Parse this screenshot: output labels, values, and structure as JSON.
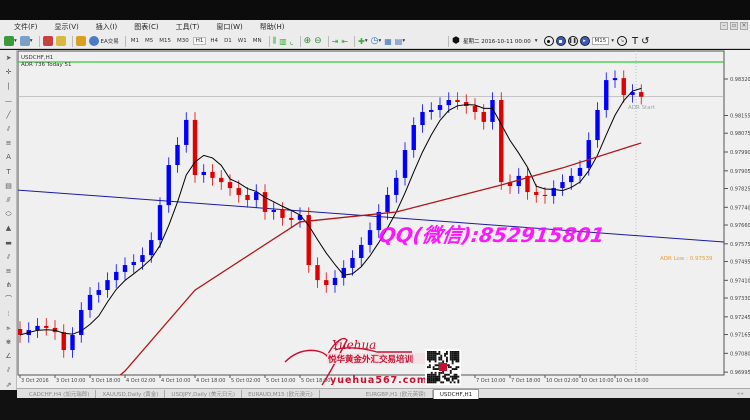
{
  "menu": [
    "文件(F)",
    "显示(V)",
    "插入(I)",
    "图表(C)",
    "工具(T)",
    "窗口(W)",
    "帮助(H)"
  ],
  "toolbar": {
    "ea_label": "EA交易",
    "timeframes": [
      "M1",
      "M5",
      "M15",
      "M30",
      "H1",
      "H4",
      "D1",
      "W1",
      "MN"
    ],
    "active_timeframe": "H1",
    "replay_date": "星期二 2016-10-11 00:00",
    "replay_period": "M15",
    "text_tool": "T"
  },
  "chart": {
    "symbol_title": "USDCHF,H1",
    "adr_info": "ADR 736  Today 51",
    "adr_start_label": "ADR Start",
    "adr_low_label": "ADR Low : 0.97539",
    "current_price": "0.98240",
    "adr_high_price": 0.98397,
    "watermark": "QQ(微信):852915801",
    "logo_signature": "Yuehua",
    "logo_cn": "悦华黄金外汇交易培训",
    "logo_url": "yuehua567.com",
    "colors": {
      "bull": "#0000ff",
      "bear": "#e00000",
      "ma_fast": "#000000",
      "ma_slow": "#b01818",
      "trendline": "#1a1aa0",
      "adr_high": "#33cc33",
      "adr_low": "#e0a040",
      "watermark": "#ff00ff"
    }
  },
  "chart_data": {
    "type": "candlestick",
    "symbol": "USDCHF",
    "timeframe": "H1",
    "price_ticks": [
      "0.98320",
      "0.98155",
      "0.98075",
      "0.97990",
      "0.97905",
      "0.97825",
      "0.97740",
      "0.97660",
      "0.97575",
      "0.97495",
      "0.97410",
      "0.97330",
      "0.97245",
      "0.97165",
      "0.97080",
      "0.96995"
    ],
    "time_ticks": [
      "3 Oct 2016",
      "3 Oct 10:00",
      "3 Oct 18:00",
      "4 Oct 02:00",
      "4 Oct 10:00",
      "4 Oct 18:00",
      "5 Oct 02:00",
      "5 Oct 10:00",
      "5 Oct 18:00",
      "",
      "",
      "",
      "",
      "7 Oct 10:00",
      "7 Oct 18:00",
      "10 Oct 02:00",
      "10 Oct 10:00",
      "10 Oct 18:00"
    ],
    "ylim": [
      0.9696,
      0.9845
    ],
    "first_open": 0.9719,
    "close": [
      0.97163,
      0.97185,
      0.97204,
      0.97195,
      0.97176,
      0.97095,
      0.97163,
      0.97276,
      0.97344,
      0.97366,
      0.97411,
      0.97448,
      0.97479,
      0.97493,
      0.97524,
      0.97592,
      0.9775,
      0.97931,
      0.98022,
      0.98135,
      0.97886,
      0.979,
      0.97873,
      0.97854,
      0.97827,
      0.97796,
      0.97773,
      0.97809,
      0.97719,
      0.97728,
      0.97692,
      0.97683,
      0.97705,
      0.97479,
      0.97411,
      0.97389,
      0.97421,
      0.97466,
      0.97511,
      0.9757,
      0.97637,
      0.97719,
      0.97796,
      0.97873,
      0.97999,
      0.98112,
      0.98171,
      0.9818,
      0.98202,
      0.98225,
      0.98216,
      0.98198,
      0.98171,
      0.98126,
      0.98225,
      0.97854,
      0.97836,
      0.97882,
      0.97809,
      0.97796,
      0.97791,
      0.97827,
      0.97854,
      0.97882,
      0.97918,
      0.98044,
      0.9818,
      0.98315,
      0.98324,
      0.98248,
      0.98261,
      0.9824
    ],
    "ma_slow": [
      [
        6,
        0.968
      ],
      [
        12,
        0.97
      ],
      [
        20,
        0.97366
      ],
      [
        32,
        0.97674
      ],
      [
        43,
        0.97719
      ],
      [
        55,
        0.97841
      ],
      [
        62,
        0.97918
      ],
      [
        71,
        0.98031
      ]
    ],
    "trendline": {
      "start_price": 0.97818,
      "end_price": 0.97583
    }
  },
  "tabs": [
    "CADCHF,H4 (加元瑞郎)",
    "XAUUSD,Daily (黄金)",
    "USDJPY,Daily (美元日元)",
    "EURAUD,M15 (欧元澳元)",
    "EURGBP,H1 (欧元英镑)",
    "USDCHF,H1"
  ],
  "active_tab": "USDCHF,H1"
}
